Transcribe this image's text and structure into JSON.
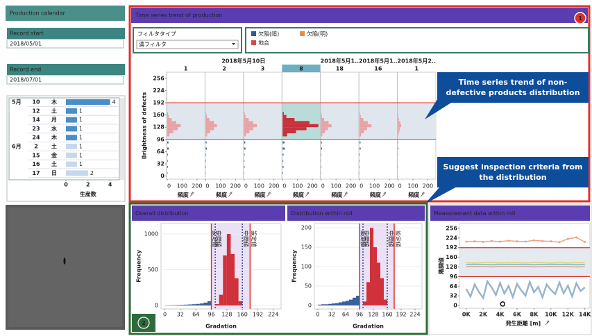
{
  "sidebar": {
    "title": "Production calendar",
    "record_start": {
      "label": "Record start",
      "value": "2018/05/01"
    },
    "record_end": {
      "label": "Record end",
      "value": "2018/07/01"
    }
  },
  "calendar": {
    "rows": [
      {
        "month": "5月",
        "day": 10,
        "weekday": "木",
        "count": 4,
        "color": "#4a8ec8"
      },
      {
        "month": null,
        "day": 12,
        "weekday": "土",
        "count": 1,
        "color": "#4a8ec8"
      },
      {
        "month": null,
        "day": 14,
        "weekday": "月",
        "count": 1,
        "color": "#4a8ec8"
      },
      {
        "month": null,
        "day": 23,
        "weekday": "水",
        "count": 1,
        "color": "#4a8ec8"
      },
      {
        "month": null,
        "day": 24,
        "weekday": "木",
        "count": 1,
        "color": "#4a8ec8"
      },
      {
        "month": "6月",
        "day": 2,
        "weekday": "土",
        "count": 1,
        "color": "#c6d8ec"
      },
      {
        "month": null,
        "day": 15,
        "weekday": "金",
        "count": 1,
        "color": "#c6d8ec"
      },
      {
        "month": null,
        "day": 16,
        "weekday": "土",
        "count": 1,
        "color": "#c6d8ec"
      },
      {
        "month": null,
        "day": 17,
        "weekday": "日",
        "count": 2,
        "color": "#c6d8ec"
      }
    ],
    "xlim": [
      0,
      4.4
    ],
    "xticks": [
      0,
      2,
      4
    ],
    "xlabel": "生産数"
  },
  "main": {
    "title": "Time series trend of production",
    "badge": "1"
  },
  "filter": {
    "label": "フィルタタイプ",
    "value": "濃フィルタ"
  },
  "legend": [
    {
      "name": "欠陥(暗)",
      "color": "#2e5b9a"
    },
    {
      "name": "欠陥(明)",
      "color": "#f08a3c"
    },
    {
      "name": "地合",
      "color": "#d84a4a"
    }
  ],
  "trend": {
    "ylabel": "Brightness of defects",
    "ylim": [
      -8,
      272
    ],
    "yticks": [
      0,
      32,
      64,
      96,
      128,
      160,
      192,
      224,
      256
    ],
    "xlim": [
      0,
      240
    ],
    "xticks": [
      0,
      100,
      200
    ],
    "xlabel": "頻度",
    "criteria": [
      96,
      192
    ],
    "criteria_color": "#e0302c",
    "band_color": "#dfe6ee",
    "ground_bins": [
      104,
      112,
      120,
      128,
      136,
      144,
      152,
      160,
      168
    ],
    "dark_bins": [
      0,
      16,
      32,
      48,
      64,
      80,
      96
    ],
    "dark_color": "#3a5fa0",
    "date_groups": [
      {
        "label": "2018年5月10日",
        "panels": [
          {
            "label": 1,
            "ground": [
              15,
              40,
              70,
              90,
              60,
              30,
              10,
              5
            ],
            "dark": [
              2,
              4,
              3,
              4,
              10,
              8
            ],
            "color": "#e8a3a7"
          },
          {
            "label": 2,
            "ground": [
              10,
              30,
              55,
              75,
              55,
              25,
              8,
              3
            ],
            "dark": [
              1,
              2,
              2,
              3,
              8,
              6
            ],
            "color": "#e8a3a7"
          },
          {
            "label": 3,
            "ground": [
              12,
              35,
              60,
              85,
              60,
              30,
              10,
              4
            ],
            "dark": [
              1,
              3,
              2,
              3,
              9,
              7
            ],
            "color": "#e8a3a7"
          },
          {
            "label": 8,
            "ground": [
              30,
              90,
              160,
              240,
              180,
              80,
              25,
              8
            ],
            "dark": [
              3,
              6,
              4,
              6,
              14,
              12
            ],
            "color": "#c8303a",
            "selected": true
          }
        ]
      },
      {
        "label": "2018年5月1..",
        "panels": [
          {
            "label": 18,
            "ground": [
              8,
              25,
              45,
              70,
              50,
              20,
              6,
              2
            ],
            "dark": [
              1,
              2,
              1,
              2,
              6,
              5
            ],
            "color": "#e8a3a7"
          }
        ]
      },
      {
        "label": "2018年5月1..",
        "panels": [
          {
            "label": 16,
            "ground": [
              10,
              30,
              50,
              80,
              55,
              25,
              8,
              3
            ],
            "dark": [
              1,
              2,
              2,
              3,
              7,
              6
            ],
            "color": "#e8a3a7"
          }
        ]
      },
      {
        "label": "2018年5月2..",
        "panels": [
          {
            "label": 1,
            "ground": [
              3,
              8,
              12,
              20,
              15,
              6,
              2,
              1
            ],
            "dark": [
              0,
              1,
              0,
              1,
              3,
              2
            ],
            "color": "#e8a3a7"
          }
        ]
      }
    ]
  },
  "callouts": [
    "Time series trend of non-defective products distribution",
    "Suggest inspection criteria from the distribution"
  ],
  "bottom_badge": "2",
  "overall": {
    "title": "Overall distribution",
    "xlabel": "Gradation",
    "ylabel": "Frequency",
    "xlim": [
      -8,
      240
    ],
    "xticks": [
      0,
      32,
      64,
      96,
      128,
      160,
      192,
      224
    ],
    "ylim": [
      -48,
      1146
    ],
    "yticks": [
      0,
      500,
      1000
    ],
    "band_color": "#ebe0f4",
    "series": [
      {
        "bins": [
          0,
          8,
          16,
          24,
          32,
          40,
          48,
          56,
          64,
          72,
          80,
          88,
          96
        ],
        "counts": [
          4,
          5,
          6,
          8,
          10,
          12,
          15,
          18,
          22,
          28,
          40,
          60
        ],
        "color": "#3a5fa0"
      },
      {
        "bins": [
          104,
          112,
          120,
          128,
          136,
          144,
          152,
          160
        ],
        "counts": [
          20,
          150,
          700,
          1000,
          720,
          380,
          60
        ],
        "color": "#d0313b"
      }
    ],
    "thresholds": [
      {
        "value": 96,
        "label": "設定値",
        "color": "#e0302c",
        "style": "solid"
      },
      {
        "value": 104,
        "label": "中間値",
        "color": "#2e4fa0",
        "style": "dotted"
      },
      {
        "value": 160,
        "label": "中間値",
        "color": "#2e4fa0",
        "style": "dotted"
      },
      {
        "value": 176,
        "label": "設定値",
        "color": "#e0302c",
        "style": "solid"
      }
    ]
  },
  "roll": {
    "title": "Distribution within roll",
    "xlabel": "Gradation",
    "ylabel": "Frequency",
    "xlim": [
      -8,
      240
    ],
    "xticks": [
      0,
      32,
      64,
      96,
      128,
      160,
      192,
      224
    ],
    "ylim": [
      -9,
      211
    ],
    "yticks": [
      0,
      50,
      100,
      150,
      200
    ],
    "band_color": "#ebe0f4",
    "series": [
      {
        "bins": [
          0,
          8,
          16,
          24,
          32,
          40,
          48,
          56,
          64,
          72,
          80,
          88,
          96
        ],
        "counts": [
          2,
          3,
          3,
          4,
          5,
          6,
          8,
          10,
          12,
          15,
          20,
          25
        ],
        "color": "#3a5fa0"
      },
      {
        "bins": [
          104,
          112,
          120,
          128,
          136,
          144,
          152,
          160
        ],
        "counts": [
          10,
          60,
          200,
          150,
          110,
          70,
          15
        ],
        "color": "#d0313b"
      }
    ],
    "thresholds": [
      {
        "value": 96,
        "label": "設定値",
        "color": "#e0302c",
        "style": "solid"
      },
      {
        "value": 104,
        "label": "中間値",
        "color": "#2e4fa0",
        "style": "dotted"
      },
      {
        "value": 160,
        "label": "中間値",
        "color": "#2e4fa0",
        "style": "dotted"
      },
      {
        "value": 176,
        "label": "設定値",
        "color": "#e0302c",
        "style": "solid"
      }
    ]
  },
  "measurement": {
    "title": "Measurement data within roll",
    "xlabel": "発生距離 [m]",
    "ylabel": "階調値",
    "xlim": [
      -800,
      14600
    ],
    "xticks": [
      {
        "value": 0,
        "label": "0K"
      },
      {
        "value": 2000,
        "label": "2K"
      },
      {
        "value": 4000,
        "label": "4K"
      },
      {
        "value": 6000,
        "label": "6K"
      },
      {
        "value": 8000,
        "label": "8K"
      },
      {
        "value": 10000,
        "label": "10K"
      },
      {
        "value": 12000,
        "label": "12K"
      },
      {
        "value": 14000,
        "label": "14K"
      }
    ],
    "ylim": [
      -9,
      272
    ],
    "yticks": [
      0,
      32,
      64,
      96,
      128,
      160,
      192,
      224,
      256
    ],
    "criteria": [
      96,
      192
    ],
    "criteria_color": "#e0302c",
    "band_color": "#e4eaf0",
    "series": [
      {
        "color": "#9ab4cc",
        "x": [
          0,
          500,
          1000,
          1500,
          2000,
          2500,
          3000,
          3500,
          4000,
          4500,
          5000,
          5500,
          6000,
          6500,
          7000,
          7500,
          8000,
          8500,
          9000,
          9500,
          10000,
          10500,
          11000,
          11500,
          12000,
          12500,
          13000,
          13500,
          14000
        ],
        "values": [
          55,
          30,
          70,
          45,
          25,
          80,
          60,
          35,
          75,
          40,
          65,
          28,
          72,
          50,
          33,
          78,
          44,
          62,
          27,
          70,
          52,
          38,
          76,
          41,
          66,
          30,
          74,
          48,
          60
        ]
      },
      {
        "color": "#e0a0a0",
        "x": [
          0,
          1000,
          2000,
          3000,
          4000,
          5000,
          6000,
          7000,
          8000,
          9000,
          10000,
          11000,
          12000,
          13000,
          14000
        ],
        "values": [
          129,
          130,
          129,
          128,
          130,
          129,
          129,
          130,
          128,
          129,
          130,
          129,
          129,
          128,
          129
        ]
      },
      {
        "color": "#6cc0c0",
        "x": [
          0,
          1000,
          2000,
          3000,
          4000,
          5000,
          6000,
          7000,
          8000,
          9000,
          10000,
          11000,
          12000,
          13000,
          14000
        ],
        "values": [
          136,
          137,
          136,
          135,
          136,
          137,
          136,
          136,
          135,
          136,
          137,
          136,
          136,
          135,
          136
        ]
      },
      {
        "color": "#e8d070",
        "x": [
          0,
          1000,
          2000,
          3000,
          4000,
          5000,
          6000,
          7000,
          8000,
          9000,
          10000,
          11000,
          12000,
          13000,
          14000
        ],
        "values": [
          142,
          141,
          142,
          143,
          141,
          142,
          142,
          141,
          143,
          142,
          141,
          142,
          141,
          142,
          142
        ]
      },
      {
        "color": "#f0a080",
        "x": [
          0,
          1000,
          2000,
          3000,
          4000,
          5000,
          6000,
          7000,
          8000,
          9000,
          10000,
          11000,
          12000,
          13000,
          14000
        ],
        "values": [
          212,
          213,
          211,
          214,
          212,
          215,
          213,
          212,
          216,
          214,
          213,
          210,
          221,
          226,
          211
        ]
      }
    ],
    "points": {
      "x": [
        4300
      ],
      "y": [
        5
      ],
      "color": "#111111"
    }
  }
}
